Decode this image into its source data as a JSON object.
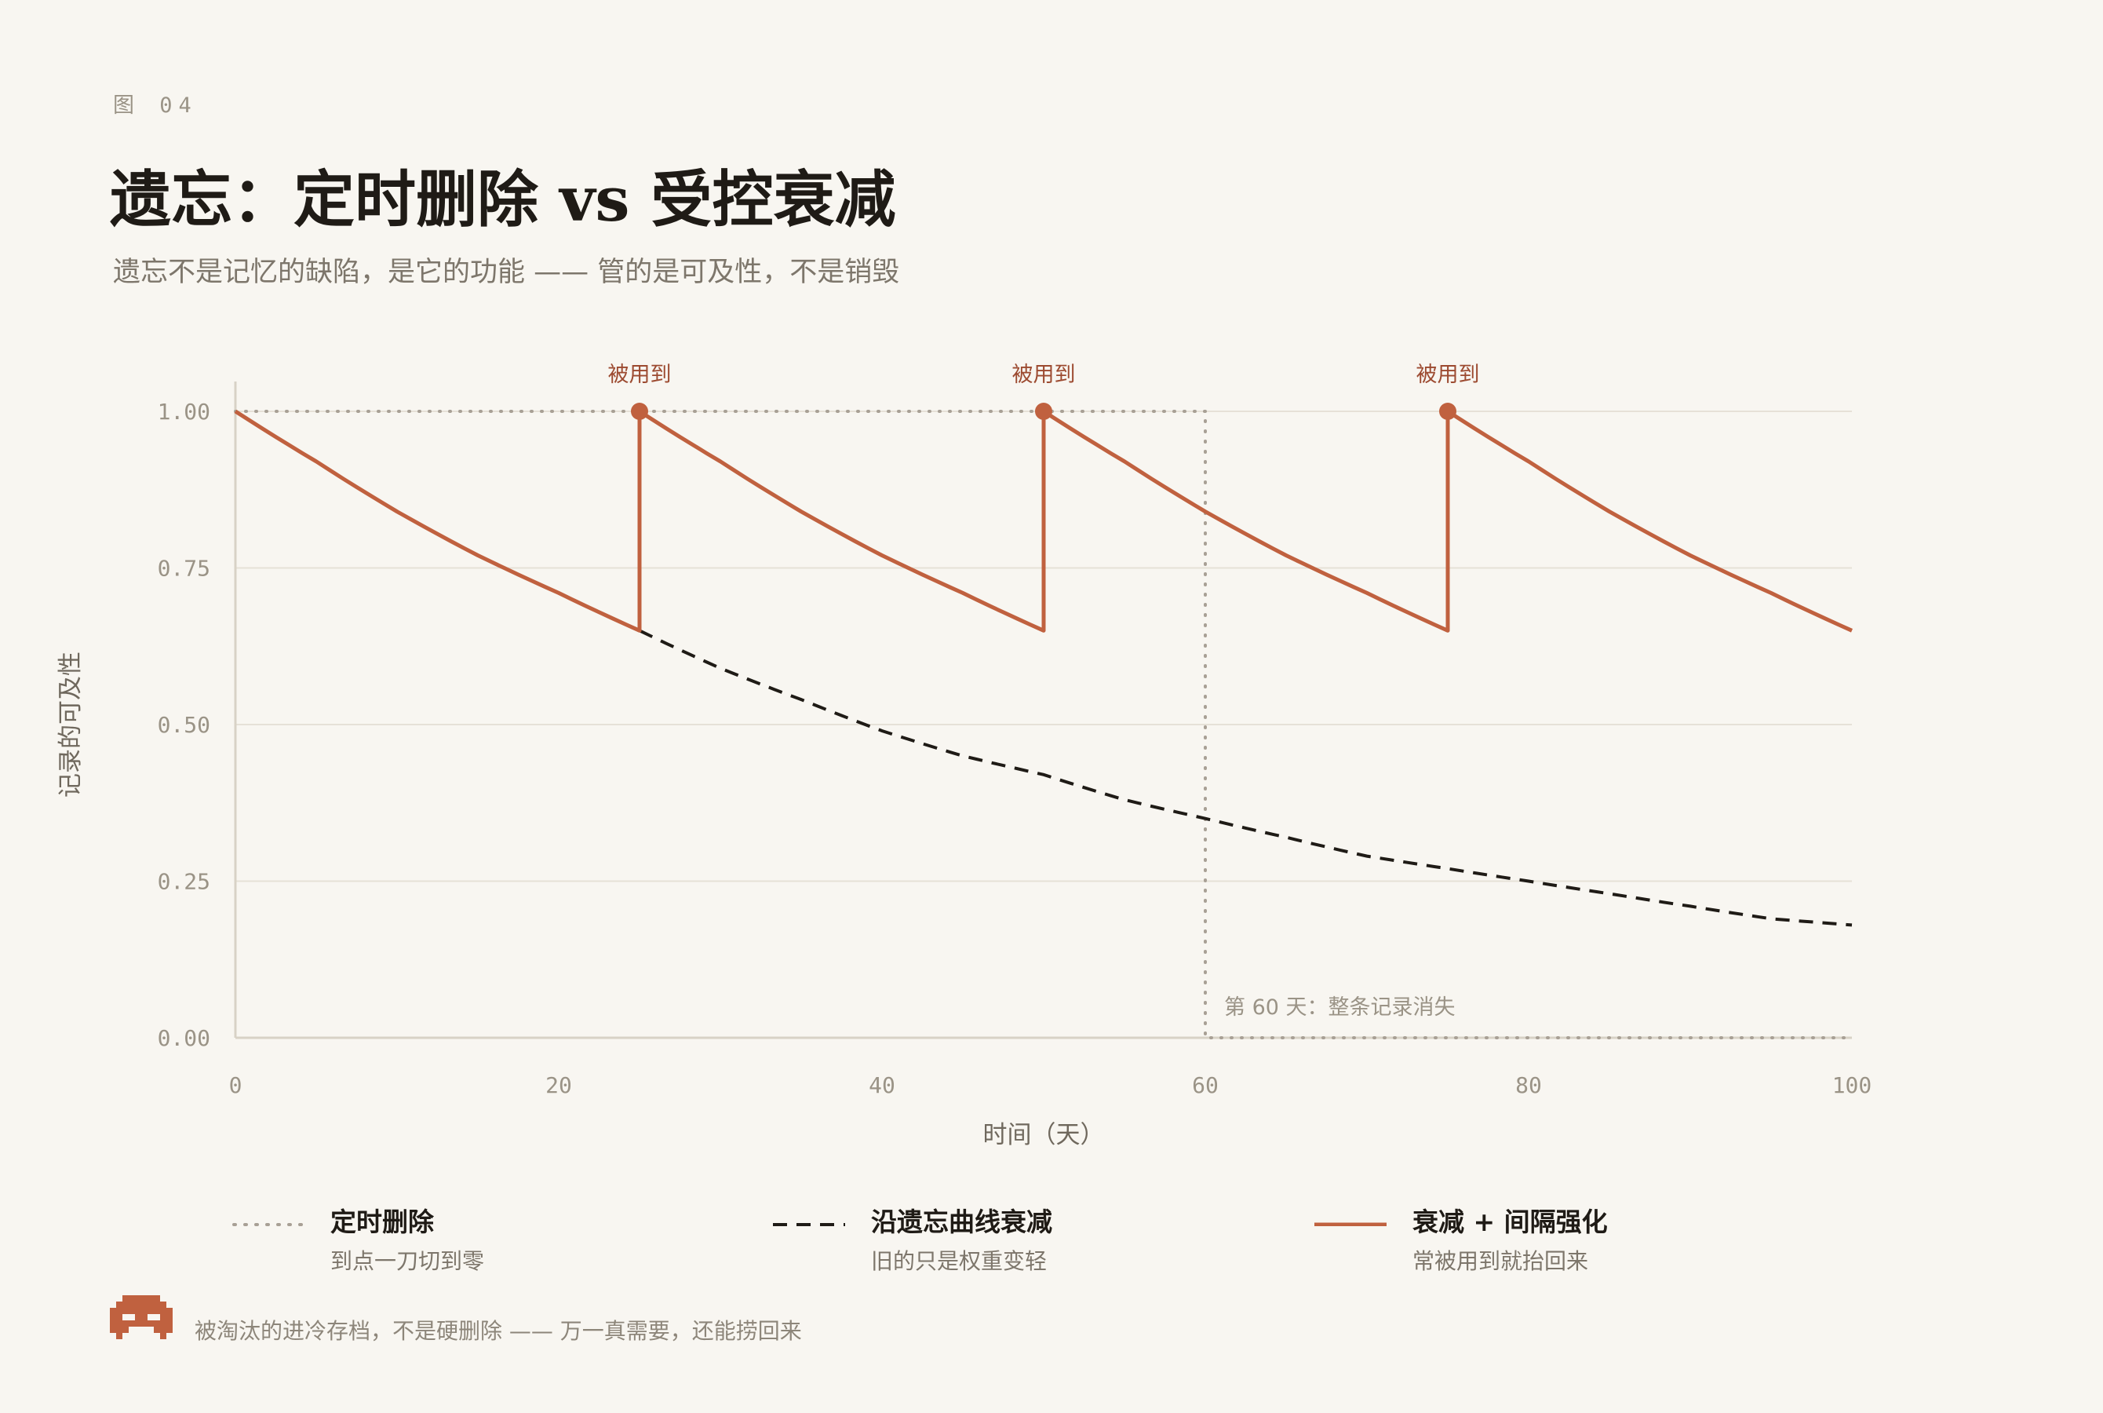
{
  "header": {
    "figure_label": "图 04",
    "title": "遗忘：定时删除 vs 受控衰减",
    "subtitle": "遗忘不是记忆的缺陷，是它的功能 —— 管的是可及性，不是销毁"
  },
  "colors": {
    "accent": "#c0613f",
    "dashed": "#1f1b16",
    "dotted": "#a8a095",
    "background": "#f8f6f1"
  },
  "chart_data": {
    "type": "line",
    "title": "遗忘：定时删除 vs 受控衰减",
    "xlabel": "时间（天）",
    "ylabel": "记录的可及性",
    "xlim": [
      0,
      100
    ],
    "ylim": [
      0,
      1
    ],
    "xticks": [
      "0",
      "20",
      "40",
      "60",
      "80",
      "100"
    ],
    "yticks": [
      "0.00",
      "0.25",
      "0.50",
      "0.75",
      "1.00"
    ],
    "grid": true,
    "legend_position": "bottom",
    "series": [
      {
        "name": "定时删除",
        "style": "dotted",
        "x": [
          0,
          60,
          60,
          100
        ],
        "y": [
          1.0,
          1.0,
          0.0,
          0.0
        ]
      },
      {
        "name": "沿遗忘曲线衰减",
        "style": "dashed",
        "x": [
          25,
          30,
          35,
          40,
          45,
          50,
          55,
          60,
          65,
          70,
          75,
          80,
          85,
          90,
          95,
          100
        ],
        "y": [
          0.65,
          0.59,
          0.54,
          0.49,
          0.45,
          0.42,
          0.38,
          0.35,
          0.32,
          0.29,
          0.27,
          0.25,
          0.23,
          0.21,
          0.19,
          0.18
        ]
      },
      {
        "name": "衰减 + 间隔强化",
        "style": "solid",
        "x": [
          0,
          5,
          10,
          15,
          20,
          25,
          25,
          30,
          35,
          40,
          45,
          50,
          50,
          55,
          60,
          65,
          70,
          75,
          75,
          80,
          85,
          90,
          95,
          100
        ],
        "y": [
          1.0,
          0.92,
          0.84,
          0.77,
          0.71,
          0.65,
          1.0,
          0.92,
          0.84,
          0.77,
          0.71,
          0.65,
          1.0,
          0.92,
          0.84,
          0.77,
          0.71,
          0.65,
          1.0,
          0.92,
          0.84,
          0.77,
          0.71,
          0.65
        ]
      }
    ],
    "annotations": [
      {
        "x": 25,
        "y": 1.0,
        "text": "被用到"
      },
      {
        "x": 50,
        "y": 1.0,
        "text": "被用到"
      },
      {
        "x": 75,
        "y": 1.0,
        "text": "被用到"
      },
      {
        "x": 60,
        "y": 0.0,
        "text": "第 60 天：整条记录消失"
      }
    ]
  },
  "legend": [
    {
      "name": "定时删除",
      "desc": "到点一刀切到零",
      "style": "dotted"
    },
    {
      "name": "沿遗忘曲线衰减",
      "desc": "旧的只是权重变轻",
      "style": "dashed"
    },
    {
      "name": "衰减 + 间隔强化",
      "desc": "常被用到就抬回来",
      "style": "solid"
    }
  ],
  "footer": {
    "icon": "pixel-creature-icon",
    "text": "被淘汰的进冷存档，不是硬删除 —— 万一真需要，还能捞回来"
  }
}
